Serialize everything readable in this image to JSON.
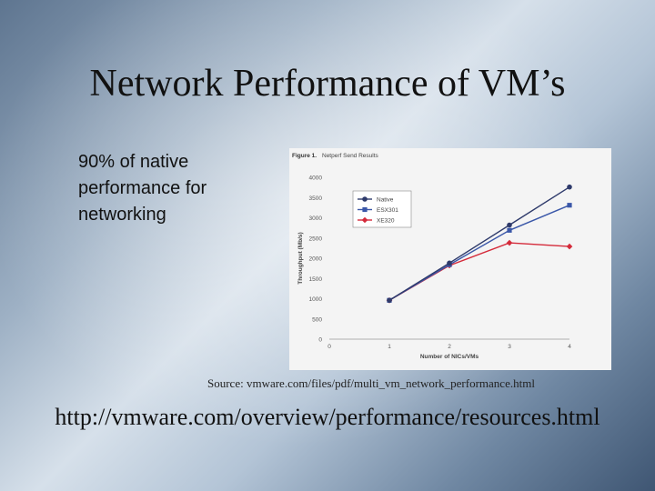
{
  "slide": {
    "title": "Network Performance of VM’s",
    "bullet": "90% of native performance for networking",
    "source": "Source: vmware.com/files/pdf/multi_vm_network_performance.html",
    "link": "http://vmware.com/overview/performance/resources.html"
  },
  "chart_data": {
    "type": "line",
    "figure_label": "Figure 1.",
    "title": "Netperf Send Results",
    "xlabel": "Number of NICs/VMs",
    "ylabel": "Throughput (Mb/s)",
    "x": [
      1,
      2,
      3,
      4
    ],
    "xlim": [
      0,
      4
    ],
    "ylim": [
      0,
      4000
    ],
    "xticks": [
      0,
      1,
      2,
      3,
      4
    ],
    "yticks": [
      0,
      500,
      1000,
      1500,
      2000,
      2500,
      3000,
      3500,
      4000
    ],
    "grid": false,
    "legend_position": "top-left",
    "series": [
      {
        "name": "Native",
        "color": "#2e3a6b",
        "marker": "circle",
        "values": [
          960,
          1880,
          2820,
          3760
        ]
      },
      {
        "name": "ESX301",
        "color": "#3a57a8",
        "marker": "square",
        "values": [
          960,
          1840,
          2690,
          3310
        ]
      },
      {
        "name": "XE320",
        "color": "#d42a3a",
        "marker": "diamond",
        "values": [
          960,
          1820,
          2380,
          2290
        ]
      }
    ]
  }
}
